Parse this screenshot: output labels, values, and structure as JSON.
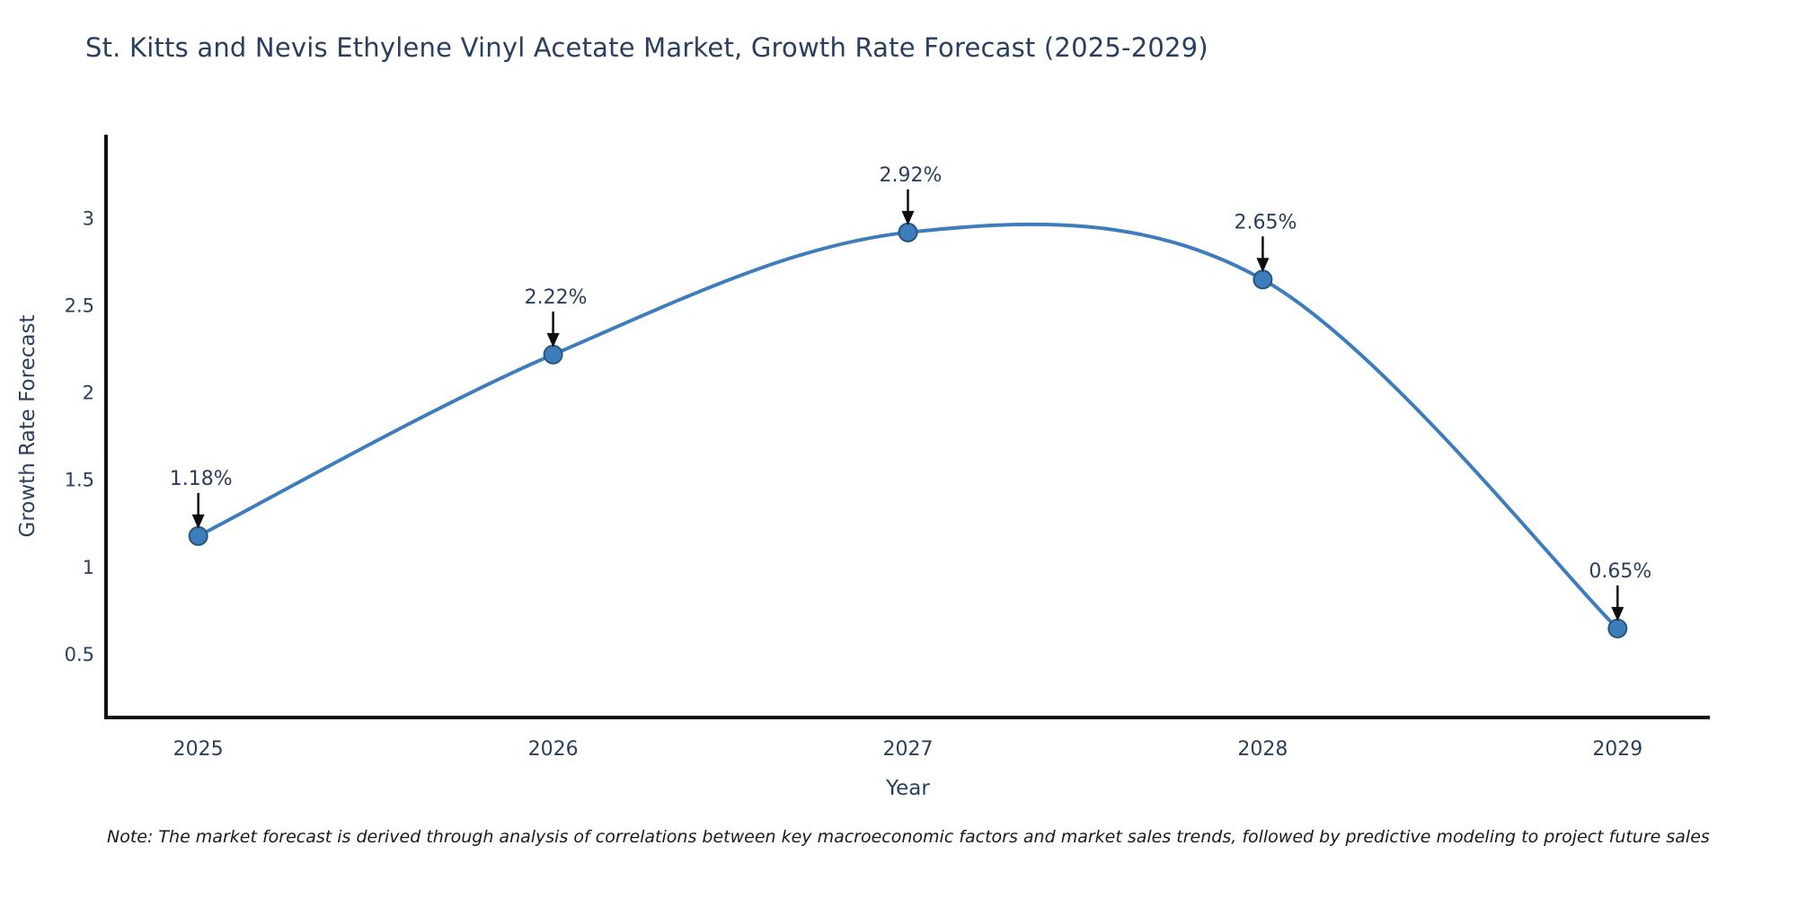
{
  "header": {
    "title": "St. Kitts and Nevis Ethylene Vinyl Acetate Market, Growth Rate Forecast (2025-2029)"
  },
  "footer": {
    "note": "Note: The market forecast is derived through analysis of correlations between key macroeconomic factors and market sales trends, followed by predictive modeling to project future sales"
  },
  "chart_data": {
    "type": "line",
    "title": "St. Kitts and Nevis Ethylene Vinyl Acetate Market, Growth Rate Forecast (2025-2029)",
    "x": [
      2025,
      2026,
      2027,
      2028,
      2029
    ],
    "series": [
      {
        "name": "Growth Rate Forecast",
        "values": [
          1.18,
          2.22,
          2.92,
          2.65,
          0.65
        ]
      }
    ],
    "point_labels": [
      "1.18%",
      "2.22%",
      "2.92%",
      "2.65%",
      "0.65%"
    ],
    "xlabel": "Year",
    "ylabel": "Growth Rate Forecast",
    "xticks": [
      "2025",
      "2026",
      "2027",
      "2028",
      "2029"
    ],
    "yticks": [
      0.5,
      1,
      1.5,
      2,
      2.5,
      3
    ],
    "xlim": [
      2024.74,
      2029.26
    ],
    "ylim": [
      0.14,
      3.48
    ],
    "line_shape": "spline",
    "grid": false,
    "legend_position": "none",
    "annotations_style": "value-with-down-arrow",
    "colors": {
      "line": "#3d7dbc",
      "marker": "#3d7dbc",
      "marker_edge": "#27567f",
      "axis_line": "#101010",
      "tick_label": "#2a3f5f",
      "axis_title": "#2a3f5f",
      "annotation_text": "#2a3f5f",
      "annotation_arrow": "#0f0f0f",
      "title": "#2a3f5f",
      "background": "#ffffff"
    }
  }
}
